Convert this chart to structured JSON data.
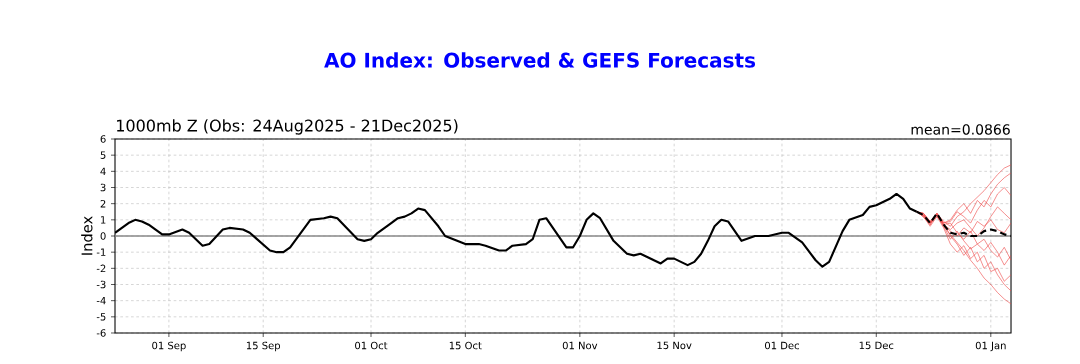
{
  "chart_data": {
    "type": "line",
    "title": "AO Index: Observed & GEFS Forecasts",
    "subtitle": "1000mb Z (Obs: 24Aug2025 - 21Dec2025)",
    "ylabel": "Index",
    "annotations": [
      "mean=0.0866"
    ],
    "xlim": [
      "2025-08-24",
      "2026-01-04"
    ],
    "xticks": [
      {
        "value": "2025-09-01",
        "label": "01 Sep"
      },
      {
        "value": "2025-09-15",
        "label": "15 Sep"
      },
      {
        "value": "2025-10-01",
        "label": "01 Oct"
      },
      {
        "value": "2025-10-15",
        "label": "15 Oct"
      },
      {
        "value": "2025-11-01",
        "label": "01 Nov"
      },
      {
        "value": "2025-11-15",
        "label": "15 Nov"
      },
      {
        "value": "2025-12-01",
        "label": "01 Dec"
      },
      {
        "value": "2025-12-15",
        "label": "15 Dec"
      },
      {
        "value": "2026-01-01",
        "label": "01 Jan"
      }
    ],
    "ylim": [
      -6,
      6
    ],
    "yticks": [
      -6,
      -5,
      -4,
      -3,
      -2,
      -1,
      0,
      1,
      2,
      3,
      4,
      5,
      6
    ],
    "grid": true,
    "marker": "none",
    "ref_lines": [
      {
        "axis": "y",
        "value": 0,
        "color": "#888888"
      }
    ],
    "series": [
      {
        "color": "#ee4444",
        "line_style": "solid",
        "x": [
          "2025-12-21",
          "2025-12-22",
          "2025-12-23",
          "2025-12-24",
          "2025-12-25",
          "2025-12-26",
          "2025-12-27",
          "2025-12-28",
          "2025-12-29",
          "2025-12-30",
          "2025-12-31",
          "2026-01-01",
          "2026-01-02",
          "2026-01-03",
          "2026-01-04"
        ],
        "values": [
          1.5,
          1.4,
          0.9,
          1.4,
          0.9,
          0.6,
          1.2,
          1.5,
          2.0,
          2.4,
          2.8,
          3.3,
          3.8,
          4.2,
          4.4
        ]
      },
      {
        "color": "#ee4444",
        "line_style": "solid",
        "x": [
          "2025-12-21",
          "2025-12-22",
          "2025-12-23",
          "2025-12-24",
          "2025-12-25",
          "2025-12-26",
          "2025-12-27",
          "2025-12-28",
          "2025-12-29",
          "2025-12-30",
          "2025-12-31",
          "2026-01-01",
          "2026-01-02",
          "2026-01-03",
          "2026-01-04"
        ],
        "values": [
          1.5,
          1.2,
          0.7,
          1.3,
          0.6,
          0.1,
          -0.4,
          -0.9,
          -1.5,
          -2.0,
          -2.6,
          -3.0,
          -3.5,
          -3.9,
          -4.2
        ]
      },
      {
        "color": "#ee4444",
        "line_style": "solid",
        "x": [
          "2025-12-21",
          "2025-12-22",
          "2025-12-23",
          "2025-12-24",
          "2025-12-25",
          "2025-12-26",
          "2025-12-27",
          "2025-12-28",
          "2025-12-29",
          "2025-12-30",
          "2025-12-31",
          "2026-01-01",
          "2026-01-02",
          "2026-01-03",
          "2026-01-04"
        ],
        "values": [
          1.5,
          1.3,
          0.8,
          1.2,
          0.8,
          0.9,
          1.5,
          1.2,
          0.8,
          1.6,
          2.2,
          1.8,
          2.6,
          3.0,
          2.5
        ]
      },
      {
        "color": "#ee4444",
        "line_style": "solid",
        "x": [
          "2025-12-21",
          "2025-12-22",
          "2025-12-23",
          "2025-12-24",
          "2025-12-25",
          "2025-12-26",
          "2025-12-27",
          "2025-12-28",
          "2025-12-29",
          "2025-12-30",
          "2025-12-31",
          "2026-01-01",
          "2026-01-02",
          "2026-01-03",
          "2026-01-04"
        ],
        "values": [
          1.5,
          1.2,
          0.6,
          1.2,
          0.5,
          -0.5,
          -1.0,
          -0.6,
          -1.4,
          -1.0,
          -2.0,
          -1.6,
          -2.4,
          -3.0,
          -3.4
        ]
      },
      {
        "color": "#ee4444",
        "line_style": "solid",
        "x": [
          "2025-12-21",
          "2025-12-22",
          "2025-12-23",
          "2025-12-24",
          "2025-12-25",
          "2025-12-26",
          "2025-12-27",
          "2025-12-28",
          "2025-12-29",
          "2025-12-30",
          "2025-12-31",
          "2026-01-01",
          "2026-01-02",
          "2026-01-03",
          "2026-01-04"
        ],
        "values": [
          1.5,
          1.3,
          0.8,
          1.4,
          0.7,
          0.3,
          0.0,
          0.5,
          0.2,
          0.9,
          0.6,
          1.0,
          0.4,
          0.2,
          0.8
        ]
      },
      {
        "color": "#ee4444",
        "line_style": "solid",
        "x": [
          "2025-12-21",
          "2025-12-22",
          "2025-12-23",
          "2025-12-24",
          "2025-12-25",
          "2025-12-26",
          "2025-12-27",
          "2025-12-28",
          "2025-12-29",
          "2025-12-30",
          "2025-12-31",
          "2026-01-01",
          "2026-01-02",
          "2026-01-03",
          "2026-01-04"
        ],
        "values": [
          1.5,
          1.4,
          0.9,
          1.3,
          0.6,
          -0.2,
          0.3,
          -0.3,
          -0.8,
          -0.5,
          -0.2,
          -0.9,
          -1.3,
          -0.7,
          -1.5
        ]
      },
      {
        "color": "#ee4444",
        "line_style": "solid",
        "x": [
          "2025-12-21",
          "2025-12-22",
          "2025-12-23",
          "2025-12-24",
          "2025-12-25",
          "2025-12-26",
          "2025-12-27",
          "2025-12-28",
          "2025-12-29",
          "2025-12-30",
          "2025-12-31",
          "2026-01-01",
          "2026-01-02",
          "2026-01-03",
          "2026-01-04"
        ],
        "values": [
          1.5,
          1.3,
          0.8,
          1.3,
          0.7,
          0.4,
          0.8,
          1.0,
          0.5,
          0.0,
          0.5,
          1.2,
          1.8,
          1.4,
          1.0
        ]
      },
      {
        "color": "#ee4444",
        "line_style": "solid",
        "x": [
          "2025-12-21",
          "2025-12-22",
          "2025-12-23",
          "2025-12-24",
          "2025-12-25",
          "2025-12-26",
          "2025-12-27",
          "2025-12-28",
          "2025-12-29",
          "2025-12-30",
          "2025-12-31",
          "2026-01-01",
          "2026-01-02",
          "2026-01-03",
          "2026-01-04"
        ],
        "values": [
          1.5,
          1.2,
          0.7,
          1.4,
          0.8,
          0.0,
          -0.5,
          -1.2,
          -0.7,
          -1.6,
          -1.2,
          -2.2,
          -2.0,
          -2.8,
          -2.4
        ]
      },
      {
        "color": "#ee4444",
        "line_style": "solid",
        "x": [
          "2025-12-21",
          "2025-12-22",
          "2025-12-23",
          "2025-12-24",
          "2025-12-25",
          "2025-12-26",
          "2025-12-27",
          "2025-12-28",
          "2025-12-29",
          "2025-12-30",
          "2025-12-31",
          "2026-01-01",
          "2026-01-02",
          "2026-01-03",
          "2026-01-04"
        ],
        "values": [
          1.5,
          1.3,
          0.9,
          1.3,
          0.7,
          0.8,
          0.2,
          -0.2,
          0.3,
          -0.5,
          -0.9,
          -0.4,
          -1.0,
          -1.8,
          -1.2
        ]
      },
      {
        "color": "#ee4444",
        "line_style": "solid",
        "x": [
          "2025-12-21",
          "2025-12-22",
          "2025-12-23",
          "2025-12-24",
          "2025-12-25",
          "2025-12-26",
          "2025-12-27",
          "2025-12-28",
          "2025-12-29",
          "2025-12-30",
          "2025-12-31",
          "2026-01-01",
          "2026-01-02",
          "2026-01-03",
          "2026-01-04"
        ],
        "values": [
          1.5,
          1.4,
          0.8,
          1.4,
          0.8,
          1.0,
          1.6,
          2.0,
          1.4,
          2.2,
          1.8,
          2.6,
          3.2,
          3.6,
          3.9
        ]
      },
      {
        "color": "#000000",
        "line_style": "solid",
        "x": [
          "2025-08-24",
          "2025-08-26",
          "2025-08-27",
          "2025-08-28",
          "2025-08-29",
          "2025-08-31",
          "2025-09-01",
          "2025-09-03",
          "2025-09-04",
          "2025-09-06",
          "2025-09-07",
          "2025-09-09",
          "2025-09-10",
          "2025-09-12",
          "2025-09-13",
          "2025-09-16",
          "2025-09-17",
          "2025-09-18",
          "2025-09-19",
          "2025-09-22",
          "2025-09-24",
          "2025-09-25",
          "2025-09-26",
          "2025-09-29",
          "2025-09-30",
          "2025-10-01",
          "2025-10-02",
          "2025-10-04",
          "2025-10-05",
          "2025-10-06",
          "2025-10-07",
          "2025-10-08",
          "2025-10-09",
          "2025-10-11",
          "2025-10-12",
          "2025-10-15",
          "2025-10-17",
          "2025-10-18",
          "2025-10-20",
          "2025-10-21",
          "2025-10-22",
          "2025-10-24",
          "2025-10-25",
          "2025-10-26",
          "2025-10-27",
          "2025-10-30",
          "2025-10-31",
          "2025-11-01",
          "2025-11-02",
          "2025-11-03",
          "2025-11-04",
          "2025-11-06",
          "2025-11-08",
          "2025-11-09",
          "2025-11-10",
          "2025-11-11",
          "2025-11-13",
          "2025-11-14",
          "2025-11-15",
          "2025-11-17",
          "2025-11-18",
          "2025-11-19",
          "2025-11-20",
          "2025-11-21",
          "2025-11-22",
          "2025-11-23",
          "2025-11-25",
          "2025-11-27",
          "2025-11-29",
          "2025-12-01",
          "2025-12-02",
          "2025-12-04",
          "2025-12-06",
          "2025-12-07",
          "2025-12-08",
          "2025-12-10",
          "2025-12-11",
          "2025-12-13",
          "2025-12-14",
          "2025-12-15",
          "2025-12-17",
          "2025-12-18",
          "2025-12-19",
          "2025-12-20",
          "2025-12-21"
        ],
        "values": [
          0.2,
          0.8,
          1.0,
          0.9,
          0.7,
          0.1,
          0.1,
          0.4,
          0.2,
          -0.6,
          -0.5,
          0.4,
          0.5,
          0.4,
          0.2,
          -0.9,
          -1.0,
          -1.0,
          -0.7,
          1.0,
          1.1,
          1.2,
          1.1,
          -0.2,
          -0.3,
          -0.2,
          0.2,
          0.8,
          1.1,
          1.2,
          1.4,
          1.7,
          1.6,
          0.6,
          0.0,
          -0.5,
          -0.5,
          -0.6,
          -0.9,
          -0.9,
          -0.6,
          -0.5,
          -0.2,
          1.0,
          1.1,
          -0.7,
          -0.7,
          0.0,
          1.0,
          1.4,
          1.1,
          -0.3,
          -1.1,
          -1.2,
          -1.1,
          -1.3,
          -1.7,
          -1.4,
          -1.4,
          -1.8,
          -1.6,
          -1.1,
          -0.3,
          0.6,
          1.0,
          0.9,
          -0.3,
          0.0,
          0.0,
          0.2,
          0.2,
          -0.4,
          -1.5,
          -1.9,
          -1.6,
          0.3,
          1.0,
          1.3,
          1.8,
          1.9,
          2.3,
          2.6,
          2.3,
          1.7,
          1.5
        ]
      },
      {
        "color": "#000000",
        "line_style": "dashed",
        "x": [
          "2025-12-21",
          "2025-12-22",
          "2025-12-23",
          "2025-12-24",
          "2025-12-25",
          "2025-12-26",
          "2025-12-27",
          "2025-12-28",
          "2025-12-29",
          "2025-12-30",
          "2025-12-31",
          "2026-01-01",
          "2026-01-02",
          "2026-01-03",
          "2026-01-04"
        ],
        "values": [
          1.5,
          1.3,
          0.8,
          1.4,
          0.7,
          0.2,
          0.1,
          0.2,
          0.0,
          0.0,
          0.3,
          0.4,
          0.3,
          0.1,
          0.0
        ]
      }
    ]
  }
}
